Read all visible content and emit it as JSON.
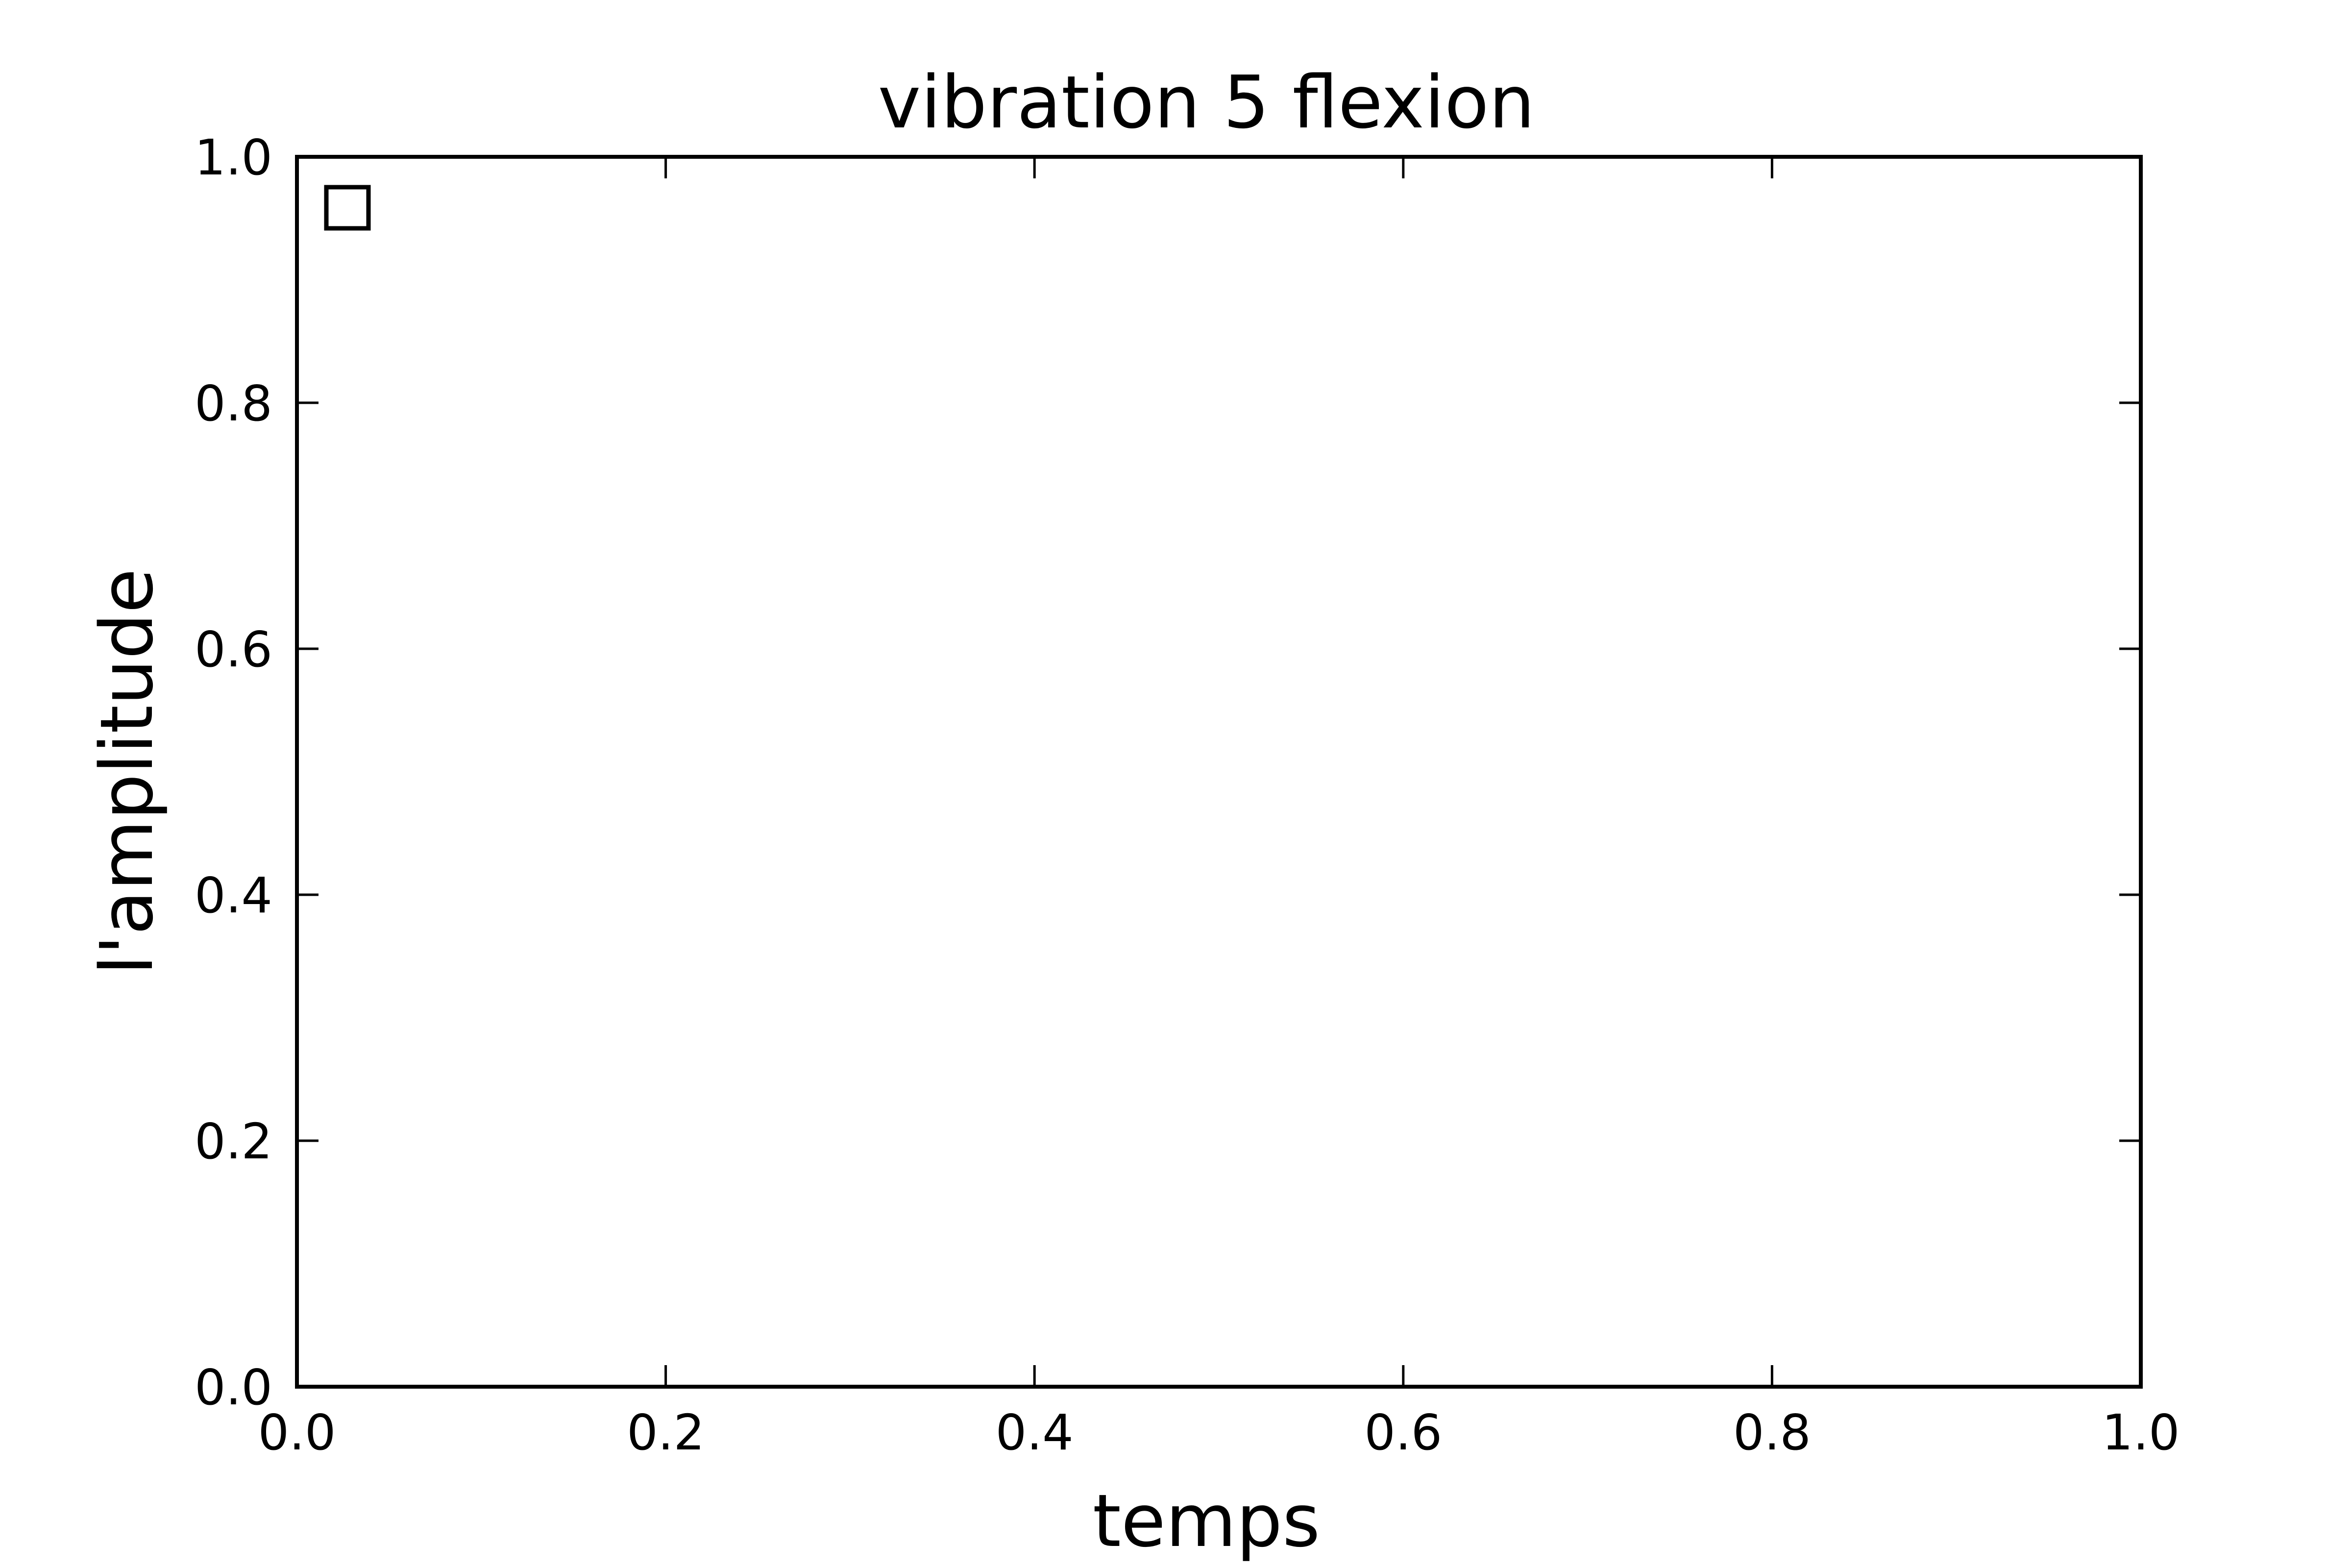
{
  "chart_data": {
    "type": "line",
    "title": "vibration 5 flexion",
    "xlabel": "temps",
    "ylabel": "l'amplitude",
    "xlim": [
      0.0,
      1.0
    ],
    "ylim": [
      0.0,
      1.0
    ],
    "xticks": [
      0.0,
      0.2,
      0.4,
      0.6,
      0.8,
      1.0
    ],
    "xtick_labels": [
      "0.0",
      "0.2",
      "0.4",
      "0.6",
      "0.8",
      "1.0"
    ],
    "yticks": [
      0.0,
      0.2,
      0.4,
      0.6,
      0.8,
      1.0
    ],
    "ytick_labels": [
      "0.0",
      "0.2",
      "0.4",
      "0.6",
      "0.8",
      "1.0"
    ],
    "grid": false,
    "legend": {
      "placement": "upper-left",
      "entries": [
        {
          "label": "",
          "marker": "square-outline",
          "color": "#000000"
        }
      ]
    },
    "series": []
  }
}
